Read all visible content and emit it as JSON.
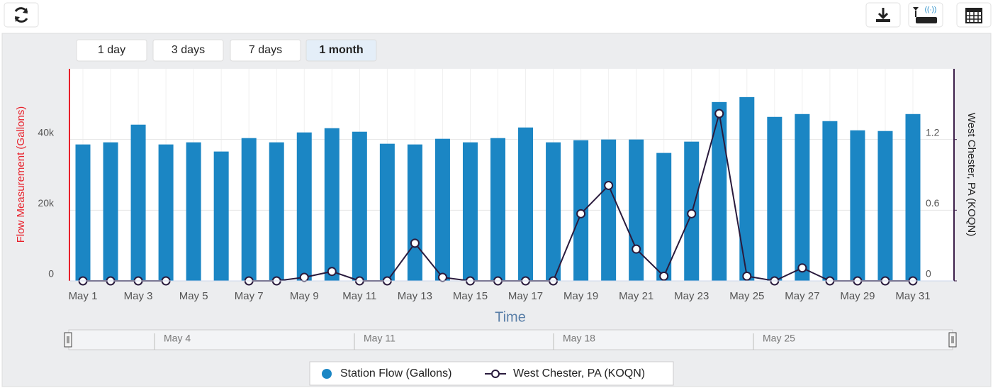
{
  "chart_data": {
    "type": "bar_line",
    "xlabel": "Time",
    "ylabel": "Flow Measurement (Gallons)",
    "y2label": "West Chester, PA (KOQN)",
    "categories": [
      "May 1",
      null,
      "May 3",
      null,
      "May 5",
      null,
      "May 7",
      null,
      "May 9",
      null,
      "May 11",
      null,
      "May 13",
      null,
      "May 15",
      null,
      "May 17",
      null,
      "May 19",
      null,
      "May 21",
      null,
      "May 23",
      null,
      "May 25",
      null,
      "May 27",
      null,
      "May 29",
      null,
      "May 31"
    ],
    "series": [
      {
        "name": "Station Flow (Gallons)",
        "type": "bar",
        "color": "#1b86c4",
        "values": [
          38600,
          39200,
          44200,
          38600,
          39200,
          36600,
          40400,
          39200,
          42000,
          43200,
          42200,
          38800,
          38600,
          40200,
          39200,
          40400,
          43400,
          39200,
          39800,
          40000,
          40000,
          36200,
          39400,
          50600,
          52000,
          46400,
          47200,
          45200,
          42600,
          42400,
          47200
        ]
      },
      {
        "name": "West Chester, PA (KOQN)",
        "type": "line",
        "axis": "y2",
        "color": "#2a1b3d",
        "values": [
          0,
          0,
          0,
          0,
          null,
          null,
          0,
          0,
          0.03,
          0.08,
          0,
          0,
          0.32,
          0.03,
          0,
          0,
          0,
          0,
          0.57,
          0.81,
          0.27,
          0.04,
          0.57,
          1.42,
          0.04,
          0,
          0.11,
          0,
          0,
          0,
          0
        ]
      }
    ],
    "ylim": [
      0,
      60000
    ],
    "yticks": [
      0,
      {
        "value": 20000,
        "label": "20k"
      },
      {
        "value": 40000,
        "label": "40k"
      }
    ],
    "y2lim": [
      0,
      1.8
    ],
    "y2ticks": [
      0,
      0.6,
      1.2
    ],
    "grid": true,
    "legend": "bottom"
  },
  "controls": {
    "range_buttons": [
      "1 day",
      "3 days",
      "7 days",
      "1 month"
    ],
    "selected_range": "1 month",
    "navigator_labels": [
      "May 4",
      "May 11",
      "May 18",
      "May 25"
    ]
  }
}
